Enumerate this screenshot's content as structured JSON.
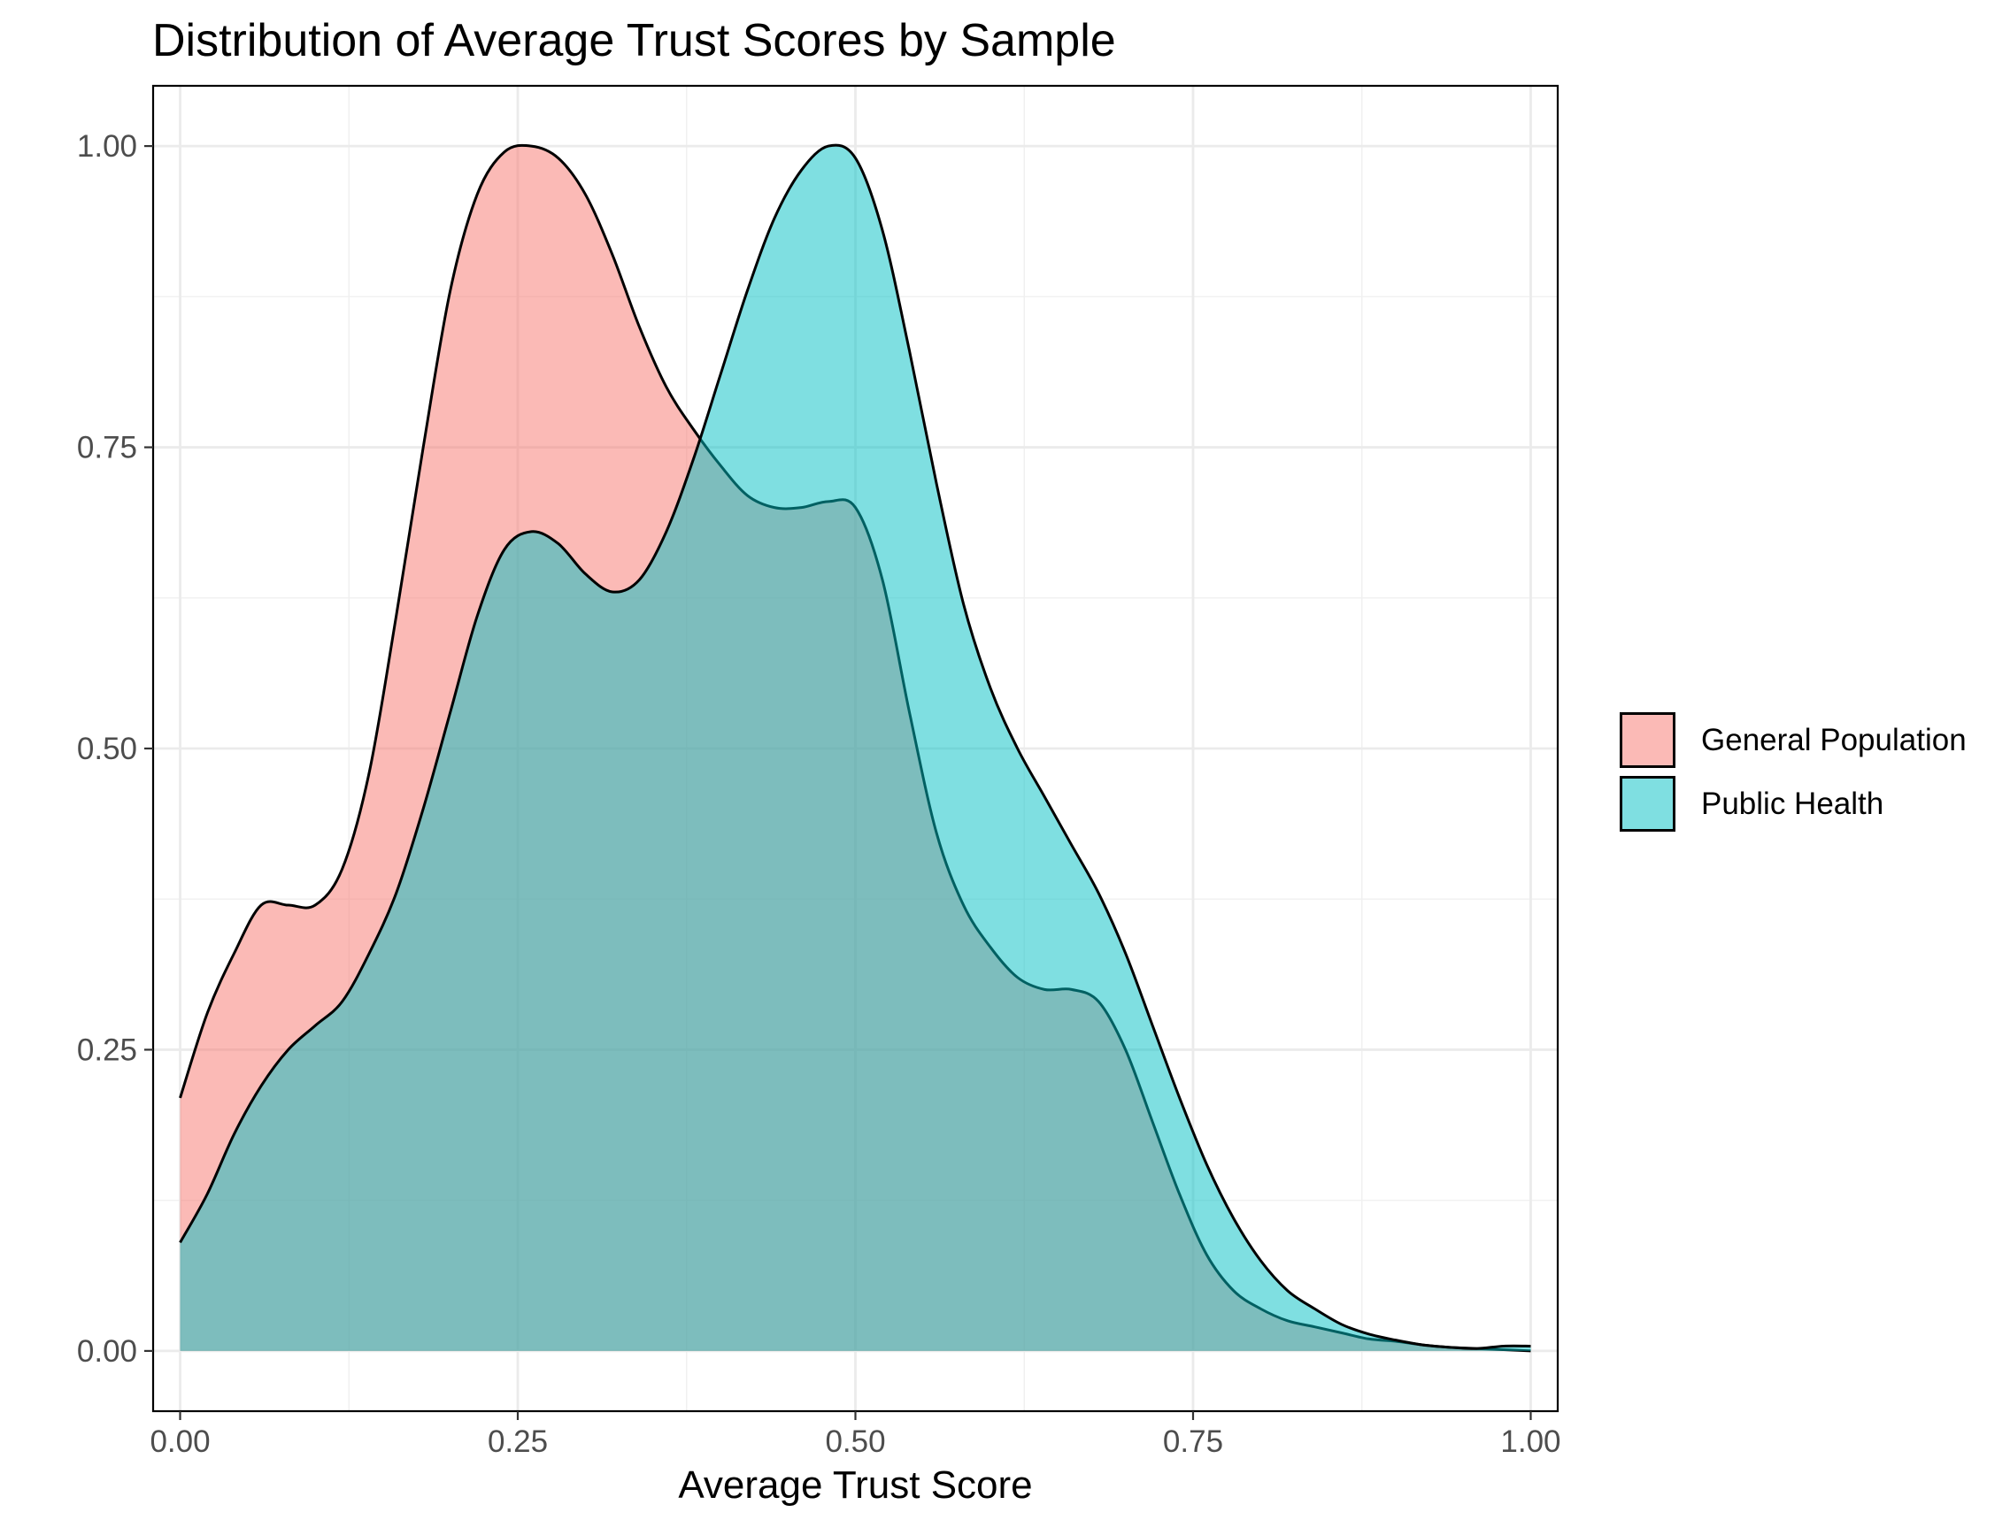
{
  "chart_data": {
    "type": "area",
    "title": "Distribution of Average Trust Scores by Sample",
    "xlabel": "Average Trust Score",
    "ylabel": "",
    "xlim": [
      -0.02,
      1.02
    ],
    "ylim": [
      -0.05,
      1.05
    ],
    "x_ticks": [
      "0.00",
      "0.25",
      "0.50",
      "0.75",
      "1.00"
    ],
    "y_ticks": [
      "0.00",
      "0.25",
      "0.50",
      "0.75",
      "1.00"
    ],
    "grid": true,
    "legend_position": "right",
    "series": [
      {
        "name": "General Population",
        "color": "#F8766D",
        "x": [
          0.0,
          0.02,
          0.04,
          0.06,
          0.08,
          0.1,
          0.12,
          0.14,
          0.16,
          0.18,
          0.2,
          0.22,
          0.24,
          0.26,
          0.28,
          0.3,
          0.32,
          0.34,
          0.36,
          0.38,
          0.4,
          0.42,
          0.44,
          0.46,
          0.48,
          0.5,
          0.52,
          0.54,
          0.56,
          0.58,
          0.6,
          0.62,
          0.64,
          0.66,
          0.68,
          0.7,
          0.72,
          0.74,
          0.76,
          0.78,
          0.8,
          0.82,
          0.84,
          0.86,
          0.88,
          0.9,
          0.92,
          0.94,
          0.96,
          0.98,
          1.0
        ],
        "values": [
          0.21,
          0.28,
          0.33,
          0.37,
          0.37,
          0.37,
          0.4,
          0.48,
          0.61,
          0.75,
          0.88,
          0.96,
          0.995,
          1.0,
          0.99,
          0.96,
          0.91,
          0.85,
          0.8,
          0.765,
          0.735,
          0.71,
          0.7,
          0.7,
          0.705,
          0.7,
          0.64,
          0.53,
          0.43,
          0.37,
          0.335,
          0.31,
          0.3,
          0.3,
          0.29,
          0.25,
          0.19,
          0.13,
          0.08,
          0.05,
          0.035,
          0.025,
          0.02,
          0.015,
          0.01,
          0.008,
          0.005,
          0.003,
          0.002,
          0.001,
          0.0
        ]
      },
      {
        "name": "Public Health",
        "color": "#00BFC4",
        "x": [
          0.0,
          0.02,
          0.04,
          0.06,
          0.08,
          0.1,
          0.12,
          0.14,
          0.16,
          0.18,
          0.2,
          0.22,
          0.24,
          0.26,
          0.28,
          0.3,
          0.32,
          0.34,
          0.36,
          0.38,
          0.4,
          0.42,
          0.44,
          0.46,
          0.48,
          0.5,
          0.52,
          0.54,
          0.56,
          0.58,
          0.6,
          0.62,
          0.64,
          0.66,
          0.68,
          0.7,
          0.72,
          0.74,
          0.76,
          0.78,
          0.8,
          0.82,
          0.84,
          0.86,
          0.88,
          0.9,
          0.92,
          0.94,
          0.96,
          0.98,
          1.0
        ],
        "values": [
          0.09,
          0.13,
          0.18,
          0.22,
          0.25,
          0.27,
          0.29,
          0.33,
          0.38,
          0.45,
          0.53,
          0.61,
          0.665,
          0.68,
          0.67,
          0.645,
          0.63,
          0.64,
          0.68,
          0.74,
          0.81,
          0.88,
          0.94,
          0.98,
          1.0,
          0.99,
          0.93,
          0.83,
          0.72,
          0.62,
          0.55,
          0.5,
          0.46,
          0.42,
          0.38,
          0.33,
          0.27,
          0.21,
          0.155,
          0.11,
          0.075,
          0.05,
          0.035,
          0.022,
          0.014,
          0.009,
          0.005,
          0.003,
          0.002,
          0.004,
          0.004
        ]
      }
    ]
  }
}
